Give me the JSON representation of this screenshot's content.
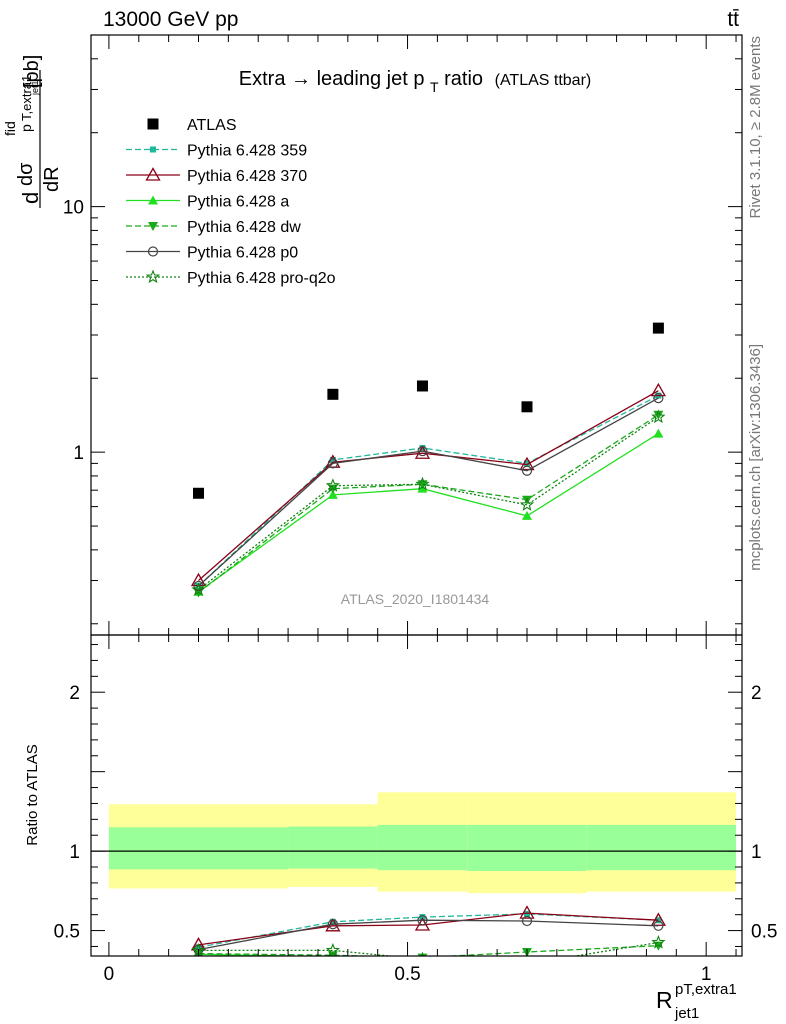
{
  "header": {
    "energy_label": "13000 GeV pp",
    "process_label": "tt̄"
  },
  "side_labels": {
    "rivet": "Rivet 3.1.10, ≥ 2.8M events",
    "mcplots": "mcplots.cern.ch [arXiv:1306.3436]"
  },
  "watermark": "ATLAS_2020_I1801434",
  "chart_data": [
    {
      "type": "line",
      "title": "Extra → leading jet p_T ratio (ATLAS ttbar)",
      "title_main": "Extra",
      "title_arrow": "→",
      "title_rest": " leading jet p",
      "title_sub": "T",
      "title_tail": " ratio",
      "title_small": "(ATLAS ttbar)",
      "ylabel": "dσ^fid/dR [pb]",
      "ylabel_parts": {
        "d1": "d",
        "dsigma": "dσ",
        "fid": "fid",
        "p": "p",
        "textra1": "T,extra1",
        "jet1": "jet1",
        "dR": "dR",
        "unit": "[pb]"
      },
      "yscale": "log",
      "ylim": [
        0.18,
        50
      ],
      "xlim": [
        -0.03,
        1.06
      ],
      "y_ticks": [
        {
          "value": 1,
          "label": "1"
        },
        {
          "value": 10,
          "label": "10"
        }
      ],
      "x": [
        0.15,
        0.375,
        0.525,
        0.7,
        0.92
      ],
      "xerr_bins": [
        [
          0.0,
          0.3
        ],
        [
          0.3,
          0.45
        ],
        [
          0.45,
          0.6
        ],
        [
          0.6,
          0.8
        ],
        [
          0.8,
          1.05
        ]
      ],
      "legend_position": "top-left",
      "series": [
        {
          "name": "ATLAS",
          "color": "#000000",
          "marker": "square-filled",
          "dash": "none",
          "show_line": false,
          "values": [
            0.68,
            1.72,
            1.86,
            1.53,
            3.2
          ]
        },
        {
          "name": "Pythia 6.428 359",
          "color": "#20b89a",
          "marker": "square-small-filled",
          "dash": "6,3",
          "values": [
            0.285,
            0.93,
            1.04,
            0.9,
            1.7
          ]
        },
        {
          "name": "Pythia 6.428 370",
          "color": "#8b0016",
          "marker": "triangle-open",
          "dash": "none",
          "values": [
            0.3,
            0.91,
            0.99,
            0.89,
            1.78
          ]
        },
        {
          "name": "Pythia 6.428 a",
          "color": "#20e020",
          "marker": "triangle-filled",
          "dash": "none",
          "values": [
            0.27,
            0.67,
            0.71,
            0.55,
            1.19
          ]
        },
        {
          "name": "Pythia 6.428 dw",
          "color": "#1aaa1a",
          "marker": "triangle-down-filled",
          "dash": "6,3",
          "values": [
            0.268,
            0.71,
            0.74,
            0.64,
            1.42
          ]
        },
        {
          "name": "Pythia 6.428 p0",
          "color": "#444444",
          "marker": "circle-open",
          "dash": "none",
          "values": [
            0.285,
            0.9,
            1.01,
            0.84,
            1.66
          ]
        },
        {
          "name": "Pythia 6.428 pro-q2o",
          "color": "#128212",
          "marker": "star",
          "dash": "2,2",
          "values": [
            0.275,
            0.73,
            0.74,
            0.61,
            1.39
          ]
        }
      ]
    },
    {
      "type": "line",
      "ylabel": "Ratio to ATLAS",
      "xlabel": "R_jet1^pT,extra1",
      "xlabel_parts": {
        "R": "R",
        "sup": "pT,extra1",
        "sub": "jet1"
      },
      "xlim": [
        -0.03,
        1.06
      ],
      "ylim": [
        0.34,
        2.36
      ],
      "x_ticks": [
        {
          "value": 0,
          "label": "0"
        },
        {
          "value": 0.5,
          "label": "0.5"
        },
        {
          "value": 1,
          "label": "1"
        }
      ],
      "y_ticks": [
        {
          "value": 0.5,
          "label": "0.5"
        },
        {
          "value": 1,
          "label": "1"
        },
        {
          "value": 2,
          "label": "2"
        }
      ],
      "reference_line": 1,
      "bands": {
        "stat_color": "#99ff99",
        "total_color": "#ffff99",
        "bins": [
          {
            "x": [
              0.0,
              0.3
            ],
            "inner": [
              0.885,
              1.15
            ],
            "outer": [
              0.765,
              1.295
            ]
          },
          {
            "x": [
              0.3,
              0.45
            ],
            "inner": [
              0.89,
              1.155
            ],
            "outer": [
              0.775,
              1.295
            ]
          },
          {
            "x": [
              0.45,
              0.6
            ],
            "inner": [
              0.88,
              1.165
            ],
            "outer": [
              0.745,
              1.37
            ]
          },
          {
            "x": [
              0.6,
              0.8
            ],
            "inner": [
              0.875,
              1.165
            ],
            "outer": [
              0.735,
              1.37
            ]
          },
          {
            "x": [
              0.8,
              1.05
            ],
            "inner": [
              0.88,
              1.165
            ],
            "outer": [
              0.745,
              1.37
            ]
          }
        ]
      },
      "x": [
        0.15,
        0.375,
        0.525,
        0.7,
        0.92
      ],
      "series": [
        {
          "name": "Pythia 6.428 359",
          "values": [
            0.395,
            0.555,
            0.585,
            0.605,
            0.565
          ]
        },
        {
          "name": "Pythia 6.428 370",
          "values": [
            0.41,
            0.53,
            0.535,
            0.61,
            0.565
          ]
        },
        {
          "name": "Pythia 6.428 a",
          "values": [
            0.35,
            0.335,
            0.29,
            0.28,
            0.31
          ]
        },
        {
          "name": "Pythia 6.428 dw",
          "values": [
            0.355,
            0.345,
            0.33,
            0.365,
            0.405
          ]
        },
        {
          "name": "Pythia 6.428 p0",
          "values": [
            0.38,
            0.54,
            0.565,
            0.56,
            0.53
          ]
        },
        {
          "name": "Pythia 6.428 pro-q2o",
          "values": [
            0.375,
            0.375,
            0.32,
            0.29,
            0.425
          ]
        }
      ]
    }
  ]
}
